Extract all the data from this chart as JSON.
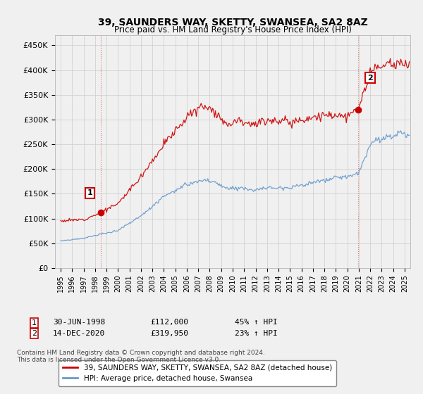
{
  "title": "39, SAUNDERS WAY, SKETTY, SWANSEA, SA2 8AZ",
  "subtitle": "Price paid vs. HM Land Registry's House Price Index (HPI)",
  "yticks": [
    0,
    50000,
    100000,
    150000,
    200000,
    250000,
    300000,
    350000,
    400000,
    450000
  ],
  "ytick_labels": [
    "£0",
    "£50K",
    "£100K",
    "£150K",
    "£200K",
    "£250K",
    "£300K",
    "£350K",
    "£400K",
    "£450K"
  ],
  "ylim": [
    0,
    470000
  ],
  "sale1": {
    "date_num": 1998.5,
    "price": 112000,
    "label": "1"
  },
  "sale2": {
    "date_num": 2020.96,
    "price": 319950,
    "label": "2"
  },
  "legend_line1": "39, SAUNDERS WAY, SKETTY, SWANSEA, SA2 8AZ (detached house)",
  "legend_line2": "HPI: Average price, detached house, Swansea",
  "footer1": "Contains HM Land Registry data © Crown copyright and database right 2024.",
  "footer2": "This data is licensed under the Open Government Licence v3.0.",
  "red_color": "#cc0000",
  "blue_color": "#6699cc",
  "background_color": "#f0f0f0",
  "grid_color": "#cccccc"
}
